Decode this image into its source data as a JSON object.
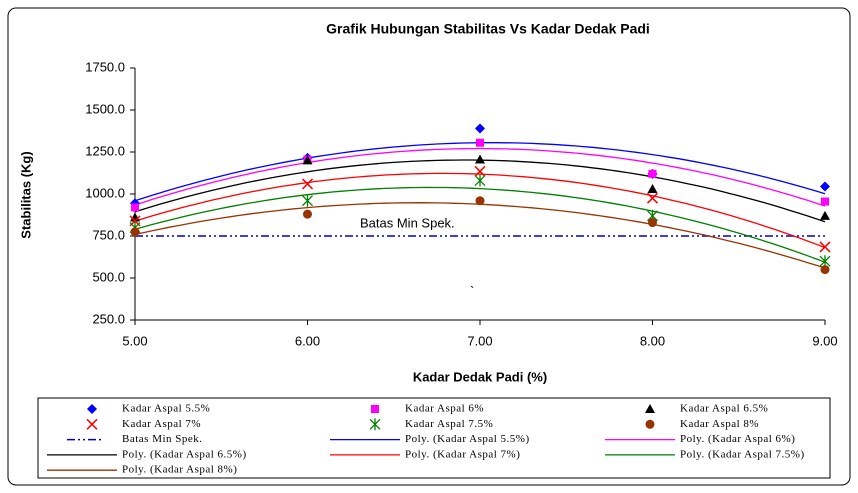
{
  "chart_data": {
    "type": "scatter",
    "title": "Grafik Hubungan Stabilitas Vs Kadar Dedak Padi",
    "xlabel": "Kadar Dedak Padi (%)",
    "ylabel": "Stabilitas (Kg)",
    "x": [
      5,
      6,
      7,
      8,
      9
    ],
    "xlim": [
      5,
      9
    ],
    "xticks": [
      {
        "value": 5,
        "label": "5.00"
      },
      {
        "value": 6,
        "label": "6.00"
      },
      {
        "value": 7,
        "label": "7.00"
      },
      {
        "value": 8,
        "label": "8.00"
      },
      {
        "value": 9,
        "label": "9.00"
      }
    ],
    "ylim": [
      250,
      1750
    ],
    "yticks": [
      {
        "value": 250,
        "label": "250.0"
      },
      {
        "value": 500,
        "label": "500.0"
      },
      {
        "value": 750,
        "label": "750.0"
      },
      {
        "value": 1000,
        "label": "1000.0"
      },
      {
        "value": 1250,
        "label": "1250.0"
      },
      {
        "value": 1500,
        "label": "1500.0"
      },
      {
        "value": 1750,
        "label": "1750.0"
      }
    ],
    "series": [
      {
        "name": "Kadar Aspal 5.5%",
        "color": "#0000ff",
        "marker": "diamond",
        "values": [
          945,
          1215,
          1390,
          1120,
          1045
        ]
      },
      {
        "name": "Kadar Aspal 6%",
        "color": "#ff00ff",
        "marker": "square",
        "values": [
          920,
          1205,
          1305,
          1120,
          955
        ]
      },
      {
        "name": "Kadar Aspal 6.5%",
        "color": "#000000",
        "marker": "triangle",
        "values": [
          860,
          1200,
          1205,
          1030,
          870
        ]
      },
      {
        "name": "Kadar Aspal 7%",
        "color": "#ff0000",
        "marker": "x",
        "values": [
          840,
          1060,
          1135,
          975,
          685
        ]
      },
      {
        "name": "Kadar Aspal 7.5%",
        "color": "#008000",
        "marker": "star",
        "values": [
          800,
          960,
          1080,
          870,
          600
        ]
      },
      {
        "name": "Kadar Aspal 8%",
        "color": "#993300",
        "marker": "circle",
        "values": [
          775,
          880,
          960,
          830,
          550
        ]
      }
    ],
    "reference_line": {
      "name": "Batas Min Spek.",
      "value": 750,
      "color": "#0000cc"
    },
    "trendlines": [
      {
        "name": "Poly. (Kadar Aspal 5.5%)",
        "color": "#0000ff"
      },
      {
        "name": "Poly. (Kadar Aspal 6%)",
        "color": "#ff00ff"
      },
      {
        "name": "Poly. (Kadar Aspal 6.5%)",
        "color": "#000000"
      },
      {
        "name": "Poly. (Kadar Aspal 7%)",
        "color": "#ff0000"
      },
      {
        "name": "Poly. (Kadar Aspal 7.5%)",
        "color": "#008000"
      },
      {
        "name": "Poly. (Kadar Aspal 8%)",
        "color": "#993300"
      }
    ],
    "annotations": [
      "Batas Min Spek.",
      "`"
    ]
  }
}
